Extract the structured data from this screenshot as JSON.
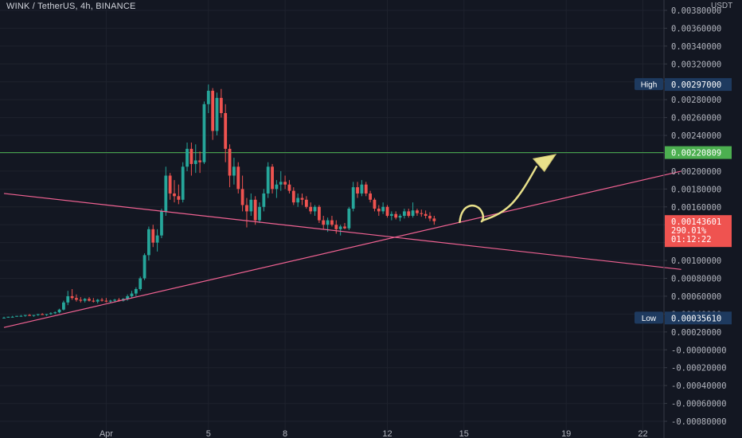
{
  "chart_data": {
    "type": "candlestick",
    "title": "WINK / TetherUS, 4h, BINANCE",
    "currency": "USDT",
    "ylim": [
      -0.0008,
      0.0038
    ],
    "y_ticks": [
      "0.00380000",
      "0.00360000",
      "0.00340000",
      "0.00320000",
      "0.00300000",
      "0.00280000",
      "0.00260000",
      "0.00240000",
      "0.00220000",
      "0.00200000",
      "0.00180000",
      "0.00160000",
      "0.00140000",
      "0.00120000",
      "0.00100000",
      "0.00080000",
      "0.00060000",
      "0.00040000",
      "0.00020000",
      "-0.00000000",
      "-0.00020000",
      "-0.00040000",
      "-0.00060000",
      "-0.00080000"
    ],
    "x_ticks": [
      "Apr",
      "5",
      "8",
      "12",
      "15",
      "19",
      "22"
    ],
    "high_label": "High",
    "high_value": "0.00297000",
    "low_label": "Low",
    "low_value": "0.00035610",
    "level_value": "0.00220809",
    "price_value": "0.00143601",
    "price_change": "290.01%",
    "countdown": "01:12:22",
    "colors": {
      "background": "#131722",
      "grid": "#1e222d",
      "up": "#26a69a",
      "down": "#ef5350",
      "trendline": "#f06292",
      "level": "#4caf50",
      "arrow": "#e8e08a",
      "badge": "#1e3a5f"
    },
    "candles": [
      [
        0.00036,
        0.00037,
        0.00035,
        0.00036
      ],
      [
        0.00036,
        0.00037,
        0.00036,
        0.00037
      ],
      [
        0.00037,
        0.00038,
        0.00036,
        0.00037
      ],
      [
        0.00037,
        0.00038,
        0.00037,
        0.00038
      ],
      [
        0.00038,
        0.00039,
        0.00037,
        0.00038
      ],
      [
        0.00038,
        0.00039,
        0.00037,
        0.00039
      ],
      [
        0.00039,
        0.0004,
        0.00038,
        0.00038
      ],
      [
        0.00038,
        0.00039,
        0.00037,
        0.00039
      ],
      [
        0.00039,
        0.0004,
        0.00038,
        0.0004
      ],
      [
        0.0004,
        0.00041,
        0.00039,
        0.00039
      ],
      [
        0.00039,
        0.0004,
        0.00038,
        0.0004
      ],
      [
        0.0004,
        0.00042,
        0.00039,
        0.00041
      ],
      [
        0.00041,
        0.00043,
        0.0004,
        0.00042
      ],
      [
        0.00042,
        0.00046,
        0.00041,
        0.00045
      ],
      [
        0.00045,
        0.00055,
        0.00044,
        0.00053
      ],
      [
        0.00053,
        0.00066,
        0.0005,
        0.0006
      ],
      [
        0.0006,
        0.00068,
        0.00056,
        0.00058
      ],
      [
        0.00058,
        0.00062,
        0.00054,
        0.00056
      ],
      [
        0.00056,
        0.00059,
        0.00053,
        0.00055
      ],
      [
        0.00055,
        0.00058,
        0.00053,
        0.00057
      ],
      [
        0.00057,
        0.00059,
        0.00054,
        0.00055
      ],
      [
        0.00055,
        0.00058,
        0.00053,
        0.00054
      ],
      [
        0.00054,
        0.00057,
        0.00052,
        0.00056
      ],
      [
        0.00056,
        0.00058,
        0.00054,
        0.00055
      ],
      [
        0.00055,
        0.00058,
        0.00053,
        0.00054
      ],
      [
        0.00054,
        0.00056,
        0.00052,
        0.00055
      ],
      [
        0.00055,
        0.00057,
        0.00053,
        0.00056
      ],
      [
        0.00056,
        0.00058,
        0.00054,
        0.00055
      ],
      [
        0.00055,
        0.00058,
        0.00054,
        0.00057
      ],
      [
        0.00057,
        0.00062,
        0.00055,
        0.0006
      ],
      [
        0.0006,
        0.00066,
        0.00058,
        0.00063
      ],
      [
        0.00063,
        0.0007,
        0.0006,
        0.00068
      ],
      [
        0.00068,
        0.00082,
        0.00066,
        0.0008
      ],
      [
        0.0008,
        0.00108,
        0.00078,
        0.00106
      ],
      [
        0.00106,
        0.00138,
        0.001,
        0.00135
      ],
      [
        0.00135,
        0.0014,
        0.00115,
        0.0012
      ],
      [
        0.0012,
        0.00135,
        0.0011,
        0.00128
      ],
      [
        0.00128,
        0.00158,
        0.00125,
        0.00155
      ],
      [
        0.00155,
        0.00205,
        0.0015,
        0.00195
      ],
      [
        0.00195,
        0.00198,
        0.00168,
        0.00175
      ],
      [
        0.00175,
        0.0019,
        0.00165,
        0.00172
      ],
      [
        0.00172,
        0.00185,
        0.00163,
        0.00168
      ],
      [
        0.00168,
        0.0021,
        0.00165,
        0.00205
      ],
      [
        0.00205,
        0.00232,
        0.002,
        0.00225
      ],
      [
        0.00225,
        0.00232,
        0.00195,
        0.00208
      ],
      [
        0.00208,
        0.0023,
        0.00198,
        0.00212
      ],
      [
        0.00212,
        0.00222,
        0.00198,
        0.0021
      ],
      [
        0.0021,
        0.00278,
        0.00208,
        0.00275
      ],
      [
        0.00275,
        0.00297,
        0.00265,
        0.0029
      ],
      [
        0.0029,
        0.00293,
        0.00235,
        0.00245
      ],
      [
        0.00245,
        0.00288,
        0.0024,
        0.00282
      ],
      [
        0.00282,
        0.00292,
        0.0026,
        0.00265
      ],
      [
        0.00265,
        0.00275,
        0.0021,
        0.00225
      ],
      [
        0.00225,
        0.0023,
        0.00182,
        0.00195
      ],
      [
        0.00195,
        0.00215,
        0.00185,
        0.00205
      ],
      [
        0.00205,
        0.0021,
        0.00175,
        0.0018
      ],
      [
        0.0018,
        0.00195,
        0.00155,
        0.00162
      ],
      [
        0.00162,
        0.0017,
        0.00137,
        0.00155
      ],
      [
        0.00155,
        0.00175,
        0.0015,
        0.00168
      ],
      [
        0.00168,
        0.00172,
        0.0014,
        0.00145
      ],
      [
        0.00145,
        0.00165,
        0.00142,
        0.0016
      ],
      [
        0.0016,
        0.0018,
        0.00155,
        0.00175
      ],
      [
        0.00175,
        0.0021,
        0.0017,
        0.00205
      ],
      [
        0.00205,
        0.00208,
        0.00175,
        0.0018
      ],
      [
        0.0018,
        0.0019,
        0.0017,
        0.00185
      ],
      [
        0.00185,
        0.002,
        0.00178,
        0.00188
      ],
      [
        0.00188,
        0.00195,
        0.0018,
        0.00185
      ],
      [
        0.00185,
        0.0019,
        0.00175,
        0.00178
      ],
      [
        0.00178,
        0.00182,
        0.00162,
        0.00165
      ],
      [
        0.00165,
        0.00175,
        0.0016,
        0.0017
      ],
      [
        0.0017,
        0.00175,
        0.00162,
        0.00168
      ],
      [
        0.00168,
        0.00172,
        0.00158,
        0.0016
      ],
      [
        0.0016,
        0.00165,
        0.00152,
        0.00155
      ],
      [
        0.00155,
        0.00162,
        0.0015,
        0.0016
      ],
      [
        0.0016,
        0.00162,
        0.00142,
        0.00145
      ],
      [
        0.00145,
        0.0015,
        0.00135,
        0.0014
      ],
      [
        0.0014,
        0.00148,
        0.00132,
        0.00145
      ],
      [
        0.00145,
        0.0015,
        0.00138,
        0.0014
      ],
      [
        0.0014,
        0.00145,
        0.0013,
        0.00135
      ],
      [
        0.00135,
        0.0014,
        0.00128,
        0.00138
      ],
      [
        0.00138,
        0.00142,
        0.00135,
        0.00136
      ],
      [
        0.00136,
        0.0016,
        0.00134,
        0.00158
      ],
      [
        0.00158,
        0.00188,
        0.00155,
        0.00182
      ],
      [
        0.00182,
        0.00188,
        0.0017,
        0.00175
      ],
      [
        0.00175,
        0.0019,
        0.00172,
        0.00185
      ],
      [
        0.00185,
        0.00188,
        0.00172,
        0.00175
      ],
      [
        0.00175,
        0.00178,
        0.00165,
        0.00168
      ],
      [
        0.00168,
        0.0017,
        0.00155,
        0.00158
      ],
      [
        0.00158,
        0.00162,
        0.0015,
        0.00155
      ],
      [
        0.00155,
        0.00165,
        0.00152,
        0.0016
      ],
      [
        0.0016,
        0.00162,
        0.00148,
        0.0015
      ],
      [
        0.0015,
        0.00155,
        0.00145,
        0.00152
      ],
      [
        0.00152,
        0.00155,
        0.00146,
        0.00148
      ],
      [
        0.00148,
        0.00152,
        0.00144,
        0.0015
      ],
      [
        0.0015,
        0.00158,
        0.00147,
        0.00155
      ],
      [
        0.00155,
        0.00158,
        0.00148,
        0.0015
      ],
      [
        0.0015,
        0.00165,
        0.00148,
        0.00156
      ],
      [
        0.00156,
        0.00158,
        0.0015,
        0.00153
      ],
      [
        0.00153,
        0.00157,
        0.00149,
        0.00152
      ],
      [
        0.00152,
        0.00156,
        0.00147,
        0.0015
      ],
      [
        0.0015,
        0.00154,
        0.00144,
        0.00147
      ],
      [
        0.00147,
        0.0015,
        0.0014,
        0.00144
      ]
    ],
    "trendlines": [
      {
        "points": [
          [
            "03-28 00:00",
            0.00175
          ],
          [
            "04-23 12:00",
            0.0009
          ]
        ]
      },
      {
        "points": [
          [
            "03-28 00:00",
            0.00025
          ],
          [
            "04-23 12:00",
            0.002
          ]
        ]
      }
    ],
    "arrow_path": [
      [
        "04-14 20:00",
        0.00143
      ],
      [
        "04-15 06:00",
        0.00165
      ],
      [
        "04-15 18:00",
        0.00145
      ],
      [
        "04-16 18:00",
        0.0016
      ],
      [
        "04-17 20:00",
        0.00205
      ],
      [
        "04-18 12:00",
        0.00217
      ]
    ]
  }
}
